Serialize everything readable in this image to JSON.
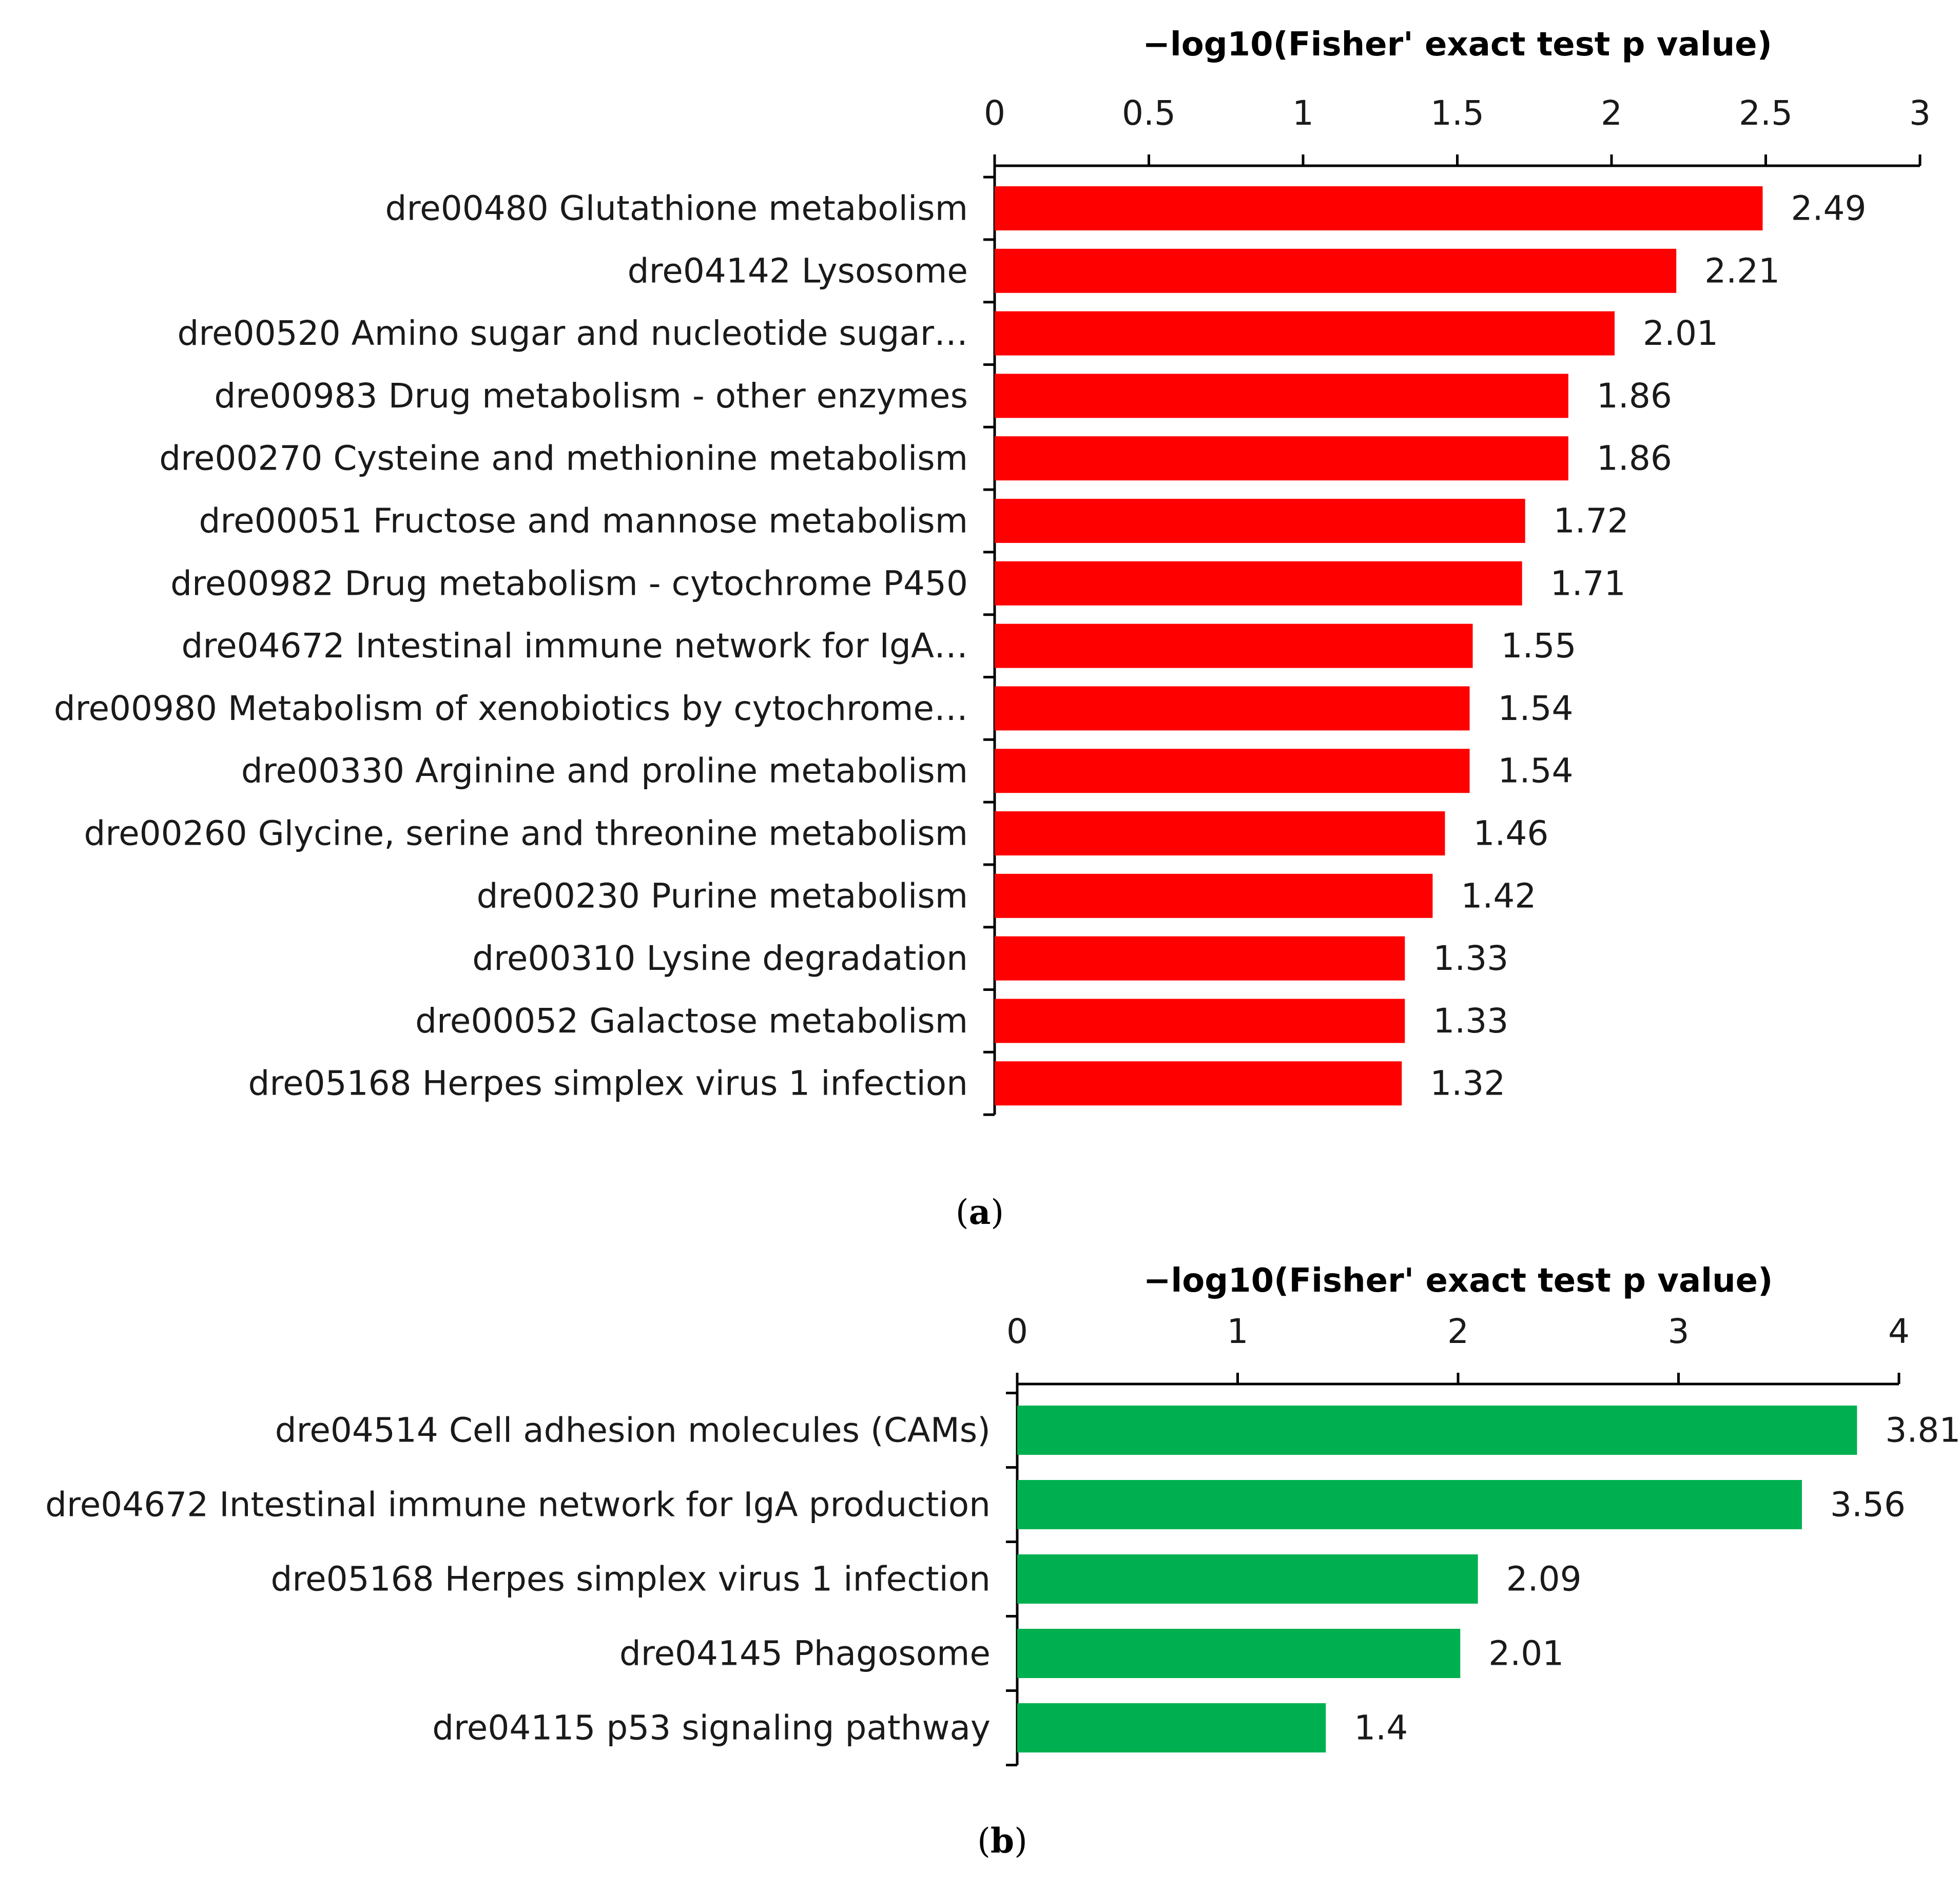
{
  "chart_data": [
    {
      "type": "bar",
      "orientation": "horizontal",
      "panel": "a",
      "caption_open": "(",
      "caption_letter": "a",
      "caption_close": ")",
      "title": "",
      "xlabel": "−log10(Fisher' exact test p value)",
      "xlabel_position": "top",
      "xlim": [
        0,
        3
      ],
      "xticks": [
        0,
        0.5,
        1,
        1.5,
        2,
        2.5,
        3
      ],
      "xtick_labels": [
        "0",
        "0.5",
        "1",
        "1.5",
        "2",
        "2.5",
        "3"
      ],
      "bar_color": "#ff0000",
      "grid": false,
      "categories": [
        "dre00480 Glutathione metabolism",
        "dre04142 Lysosome",
        "dre00520 Amino sugar and nucleotide sugar…",
        "dre00983 Drug metabolism - other enzymes",
        "dre00270 Cysteine and methionine metabolism",
        "dre00051 Fructose and mannose metabolism",
        "dre00982 Drug metabolism - cytochrome P450",
        "dre04672 Intestinal immune network for IgA…",
        "dre00980 Metabolism of xenobiotics by cytochrome…",
        "dre00330 Arginine and proline metabolism",
        "dre00260 Glycine, serine and threonine metabolism",
        "dre00230 Purine metabolism",
        "dre00310 Lysine degradation",
        "dre00052 Galactose metabolism",
        "dre05168 Herpes simplex virus 1 infection"
      ],
      "values": [
        2.49,
        2.21,
        2.01,
        1.86,
        1.86,
        1.72,
        1.71,
        1.55,
        1.54,
        1.54,
        1.46,
        1.42,
        1.33,
        1.33,
        1.32
      ],
      "value_labels": [
        "2.49",
        "2.21",
        "2.01",
        "1.86",
        "1.86",
        "1.72",
        "1.71",
        "1.55",
        "1.54",
        "1.54",
        "1.46",
        "1.42",
        "1.33",
        "1.33",
        "1.32"
      ]
    },
    {
      "type": "bar",
      "orientation": "horizontal",
      "panel": "b",
      "caption_open": "(",
      "caption_letter": "b",
      "caption_close": ")",
      "title": "",
      "xlabel": "−log10(Fisher' exact test p value)",
      "xlabel_position": "top",
      "xlim": [
        0,
        4
      ],
      "xticks": [
        0,
        1,
        2,
        3,
        4
      ],
      "xtick_labels": [
        "0",
        "1",
        "2",
        "3",
        "4"
      ],
      "bar_color": "#00b050",
      "grid": false,
      "categories": [
        "dre04514 Cell adhesion molecules (CAMs)",
        "dre04672 Intestinal immune network for IgA production",
        "dre05168 Herpes simplex virus 1 infection",
        "dre04145 Phagosome",
        "dre04115 p53 signaling pathway"
      ],
      "values": [
        3.81,
        3.56,
        2.09,
        2.01,
        1.4
      ],
      "value_labels": [
        "3.81",
        "3.56",
        "2.09",
        "2.01",
        "1.4"
      ]
    }
  ]
}
